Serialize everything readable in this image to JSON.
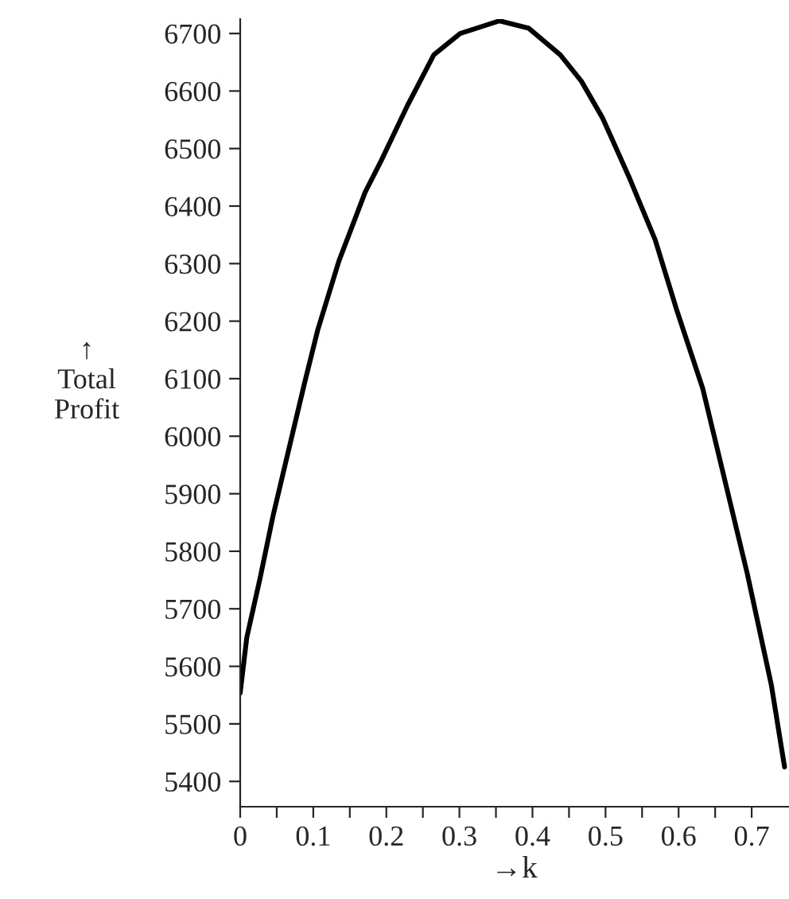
{
  "chart_data": {
    "type": "line",
    "xlabel": "→k",
    "ylabel": "↑\nTotal\nProfit",
    "x": [
      0,
      0.009,
      0.027,
      0.045,
      0.07,
      0.088,
      0.106,
      0.135,
      0.171,
      0.193,
      0.229,
      0.265,
      0.301,
      0.355,
      0.395,
      0.438,
      0.467,
      0.496,
      0.532,
      0.568,
      0.597,
      0.633,
      0.662,
      0.694,
      0.727,
      0.745
    ],
    "series": [
      {
        "color": "#000000",
        "values": [
          5554,
          5650,
          5752,
          5862,
          5996,
          6092,
          6184,
          6304,
          6424,
          6479,
          6575,
          6663,
          6700,
          6722,
          6709,
          6663,
          6617,
          6553,
          6451,
          6341,
          6221,
          6083,
          5930,
          5761,
          5567,
          5425
        ]
      }
    ],
    "xlim": [
      0,
      0.75
    ],
    "ylim": [
      5356,
      6725
    ],
    "xticks": [
      0,
      {
        "value": 0.05,
        "label": null
      },
      0.1,
      {
        "value": 0.15,
        "label": null
      },
      0.2,
      {
        "value": 0.25,
        "label": null
      },
      0.3,
      {
        "value": 0.35,
        "label": null
      },
      0.4,
      {
        "value": 0.45,
        "label": null
      },
      0.5,
      {
        "value": 0.55,
        "label": null
      },
      0.6,
      {
        "value": 0.65,
        "label": null
      },
      0.7
    ],
    "yticks": [
      5400,
      5500,
      5600,
      5700,
      5800,
      5900,
      6000,
      6100,
      6200,
      6300,
      6400,
      6500,
      6600,
      6700
    ],
    "grid": false,
    "legend": false,
    "marker": "none",
    "line_style": "solid"
  }
}
